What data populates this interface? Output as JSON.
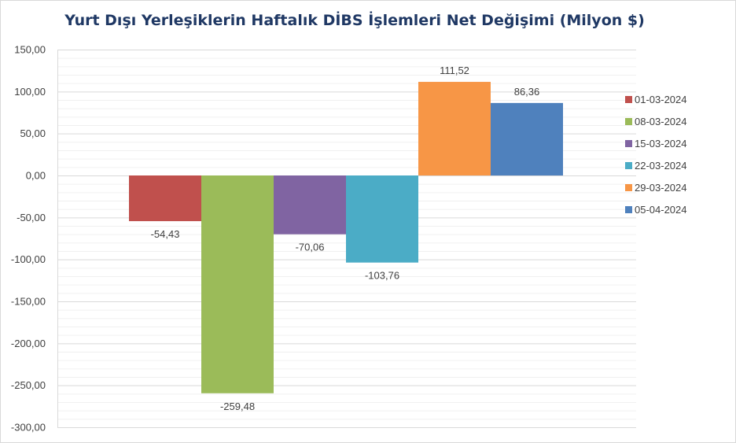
{
  "chart_data": {
    "type": "bar",
    "title": "Yurt Dışı Yerleşiklerin Haftalık DİBS İşlemleri Net Değişimi (Milyon $)",
    "categories": [
      "01-03-2024",
      "08-03-2024",
      "15-03-2024",
      "22-03-2024",
      "29-03-2024",
      "05-04-2024"
    ],
    "series": [
      {
        "name": "01-03-2024",
        "value": -54.43,
        "label": "-54,43",
        "color": "#c0504d"
      },
      {
        "name": "08-03-2024",
        "value": -259.48,
        "label": "-259,48",
        "color": "#9bbb59"
      },
      {
        "name": "15-03-2024",
        "value": -70.06,
        "label": "-70,06",
        "color": "#8064a2"
      },
      {
        "name": "22-03-2024",
        "value": -103.76,
        "label": "-103,76",
        "color": "#4bacc6"
      },
      {
        "name": "29-03-2024",
        "value": 111.52,
        "label": "111,52",
        "color": "#f79646"
      },
      {
        "name": "05-04-2024",
        "value": 86.36,
        "label": "86,36",
        "color": "#4f81bd"
      }
    ],
    "yticks": [
      {
        "value": 150,
        "label": "150,00"
      },
      {
        "value": 100,
        "label": "100,00"
      },
      {
        "value": 50,
        "label": "50,00"
      },
      {
        "value": 0,
        "label": "0,00"
      },
      {
        "value": -50,
        "label": "-50,00"
      },
      {
        "value": -100,
        "label": "-100,00"
      },
      {
        "value": -150,
        "label": "-150,00"
      },
      {
        "value": -200,
        "label": "-200,00"
      },
      {
        "value": -250,
        "label": "-250,00"
      },
      {
        "value": -300,
        "label": "-300,00"
      }
    ],
    "ylim": [
      -300,
      150
    ],
    "xlabel": "",
    "ylabel": "",
    "grid": true,
    "legend_position": "right"
  }
}
